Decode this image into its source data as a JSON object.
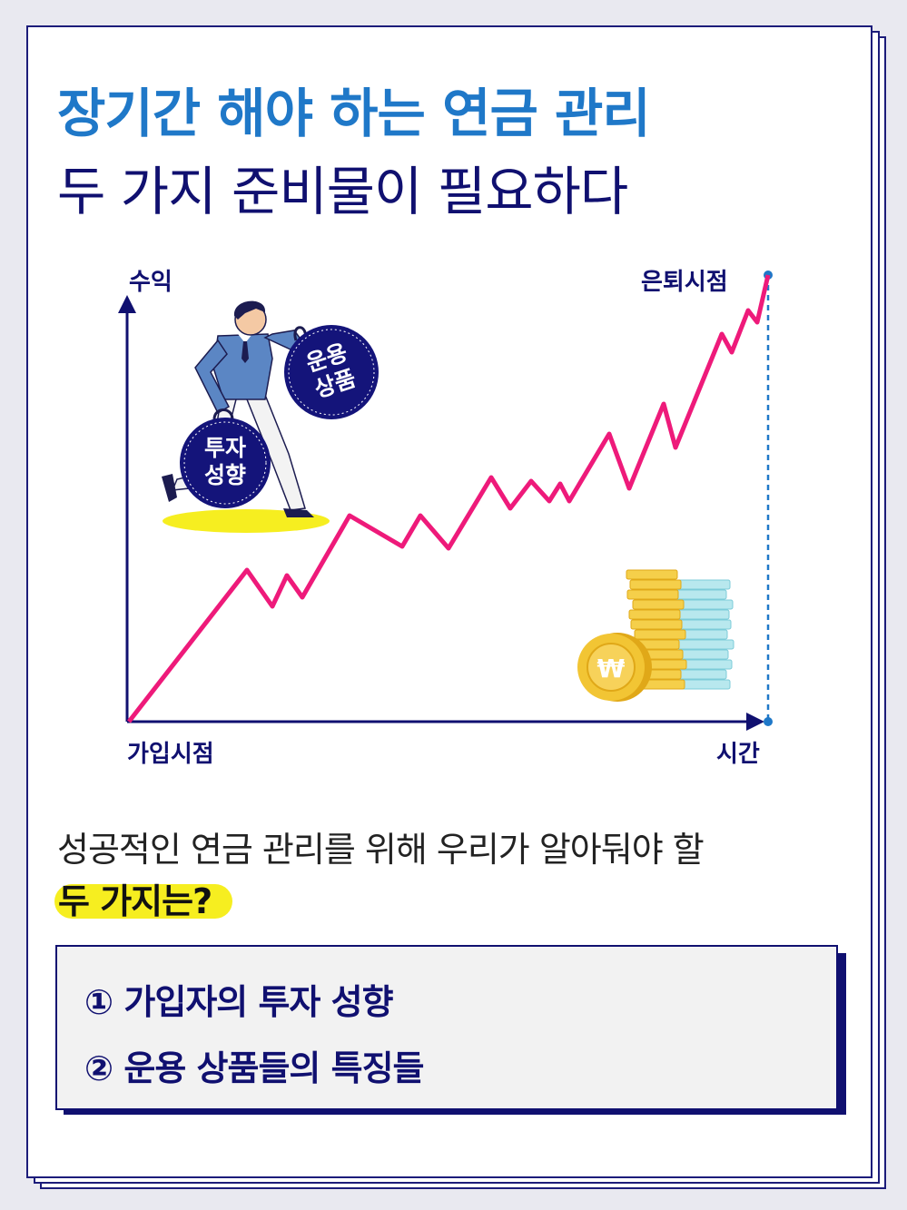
{
  "title": {
    "line1": "장기간 해야 하는 연금 관리",
    "line2": "두 가지 준비물이 필요하다"
  },
  "chart": {
    "y_axis_label": "수익",
    "x_axis_label": "시간",
    "start_label": "가입시점",
    "end_label": "은퇴시점",
    "weight_left": [
      "투자",
      "성향"
    ],
    "weight_right": [
      "운용",
      "상품"
    ],
    "coin_symbol": "₩",
    "line_color": "#ee1a7a",
    "axis_color": "#101070"
  },
  "question": {
    "line1": "성공적인 연금 관리를 위해 우리가 알아둬야 할",
    "line2": "두 가지는?"
  },
  "answers": [
    "① 가입자의 투자 성향",
    "② 운용 상품들의 특징들"
  ]
}
